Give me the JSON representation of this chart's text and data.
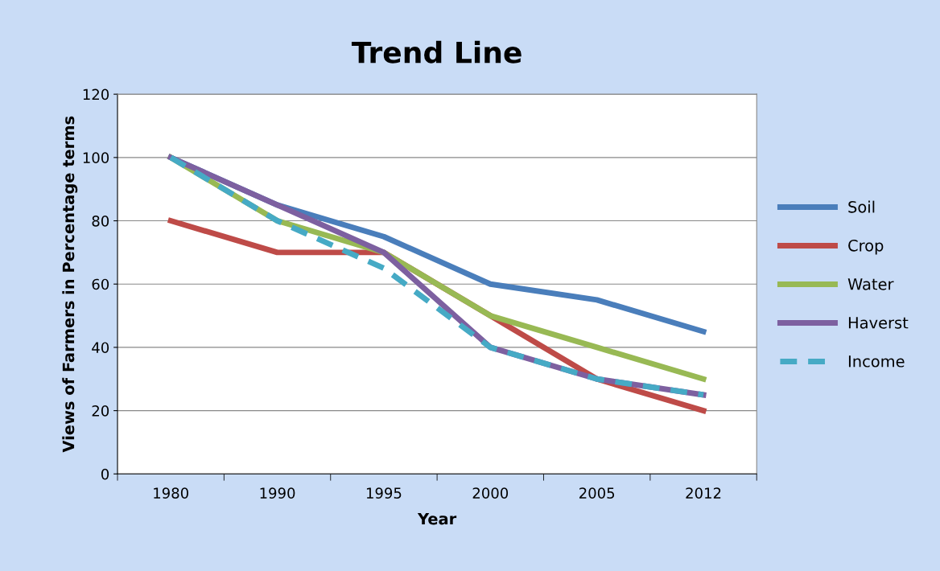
{
  "chart_data": {
    "type": "line",
    "title": "Trend Line",
    "xlabel": "Year",
    "ylabel": "Views of Farmers in Percentage terms",
    "categories": [
      "1980",
      "1990",
      "1995",
      "2000",
      "2005",
      "2012"
    ],
    "series": [
      {
        "name": "Soil",
        "color": "#4a7ebb",
        "values": [
          100,
          85,
          75,
          60,
          55,
          45
        ]
      },
      {
        "name": "Crop",
        "color": "#be4b48",
        "values": [
          80,
          70,
          70,
          50,
          30,
          20
        ]
      },
      {
        "name": "Water",
        "color": "#98b954",
        "values": [
          100,
          80,
          70,
          50,
          40,
          30
        ]
      },
      {
        "name": "Haverst",
        "color": "#7d60a0",
        "values": [
          100,
          85,
          70,
          40,
          30,
          25
        ]
      },
      {
        "name": "Income",
        "color": "#46aac5",
        "values": [
          100,
          80,
          65,
          40,
          30,
          25
        ],
        "line_style": "dashed"
      }
    ],
    "ylim": [
      0,
      120
    ],
    "yticks": [
      0,
      20,
      40,
      60,
      80,
      100,
      120
    ],
    "grid": "y",
    "legend": "right",
    "marker": "none"
  }
}
